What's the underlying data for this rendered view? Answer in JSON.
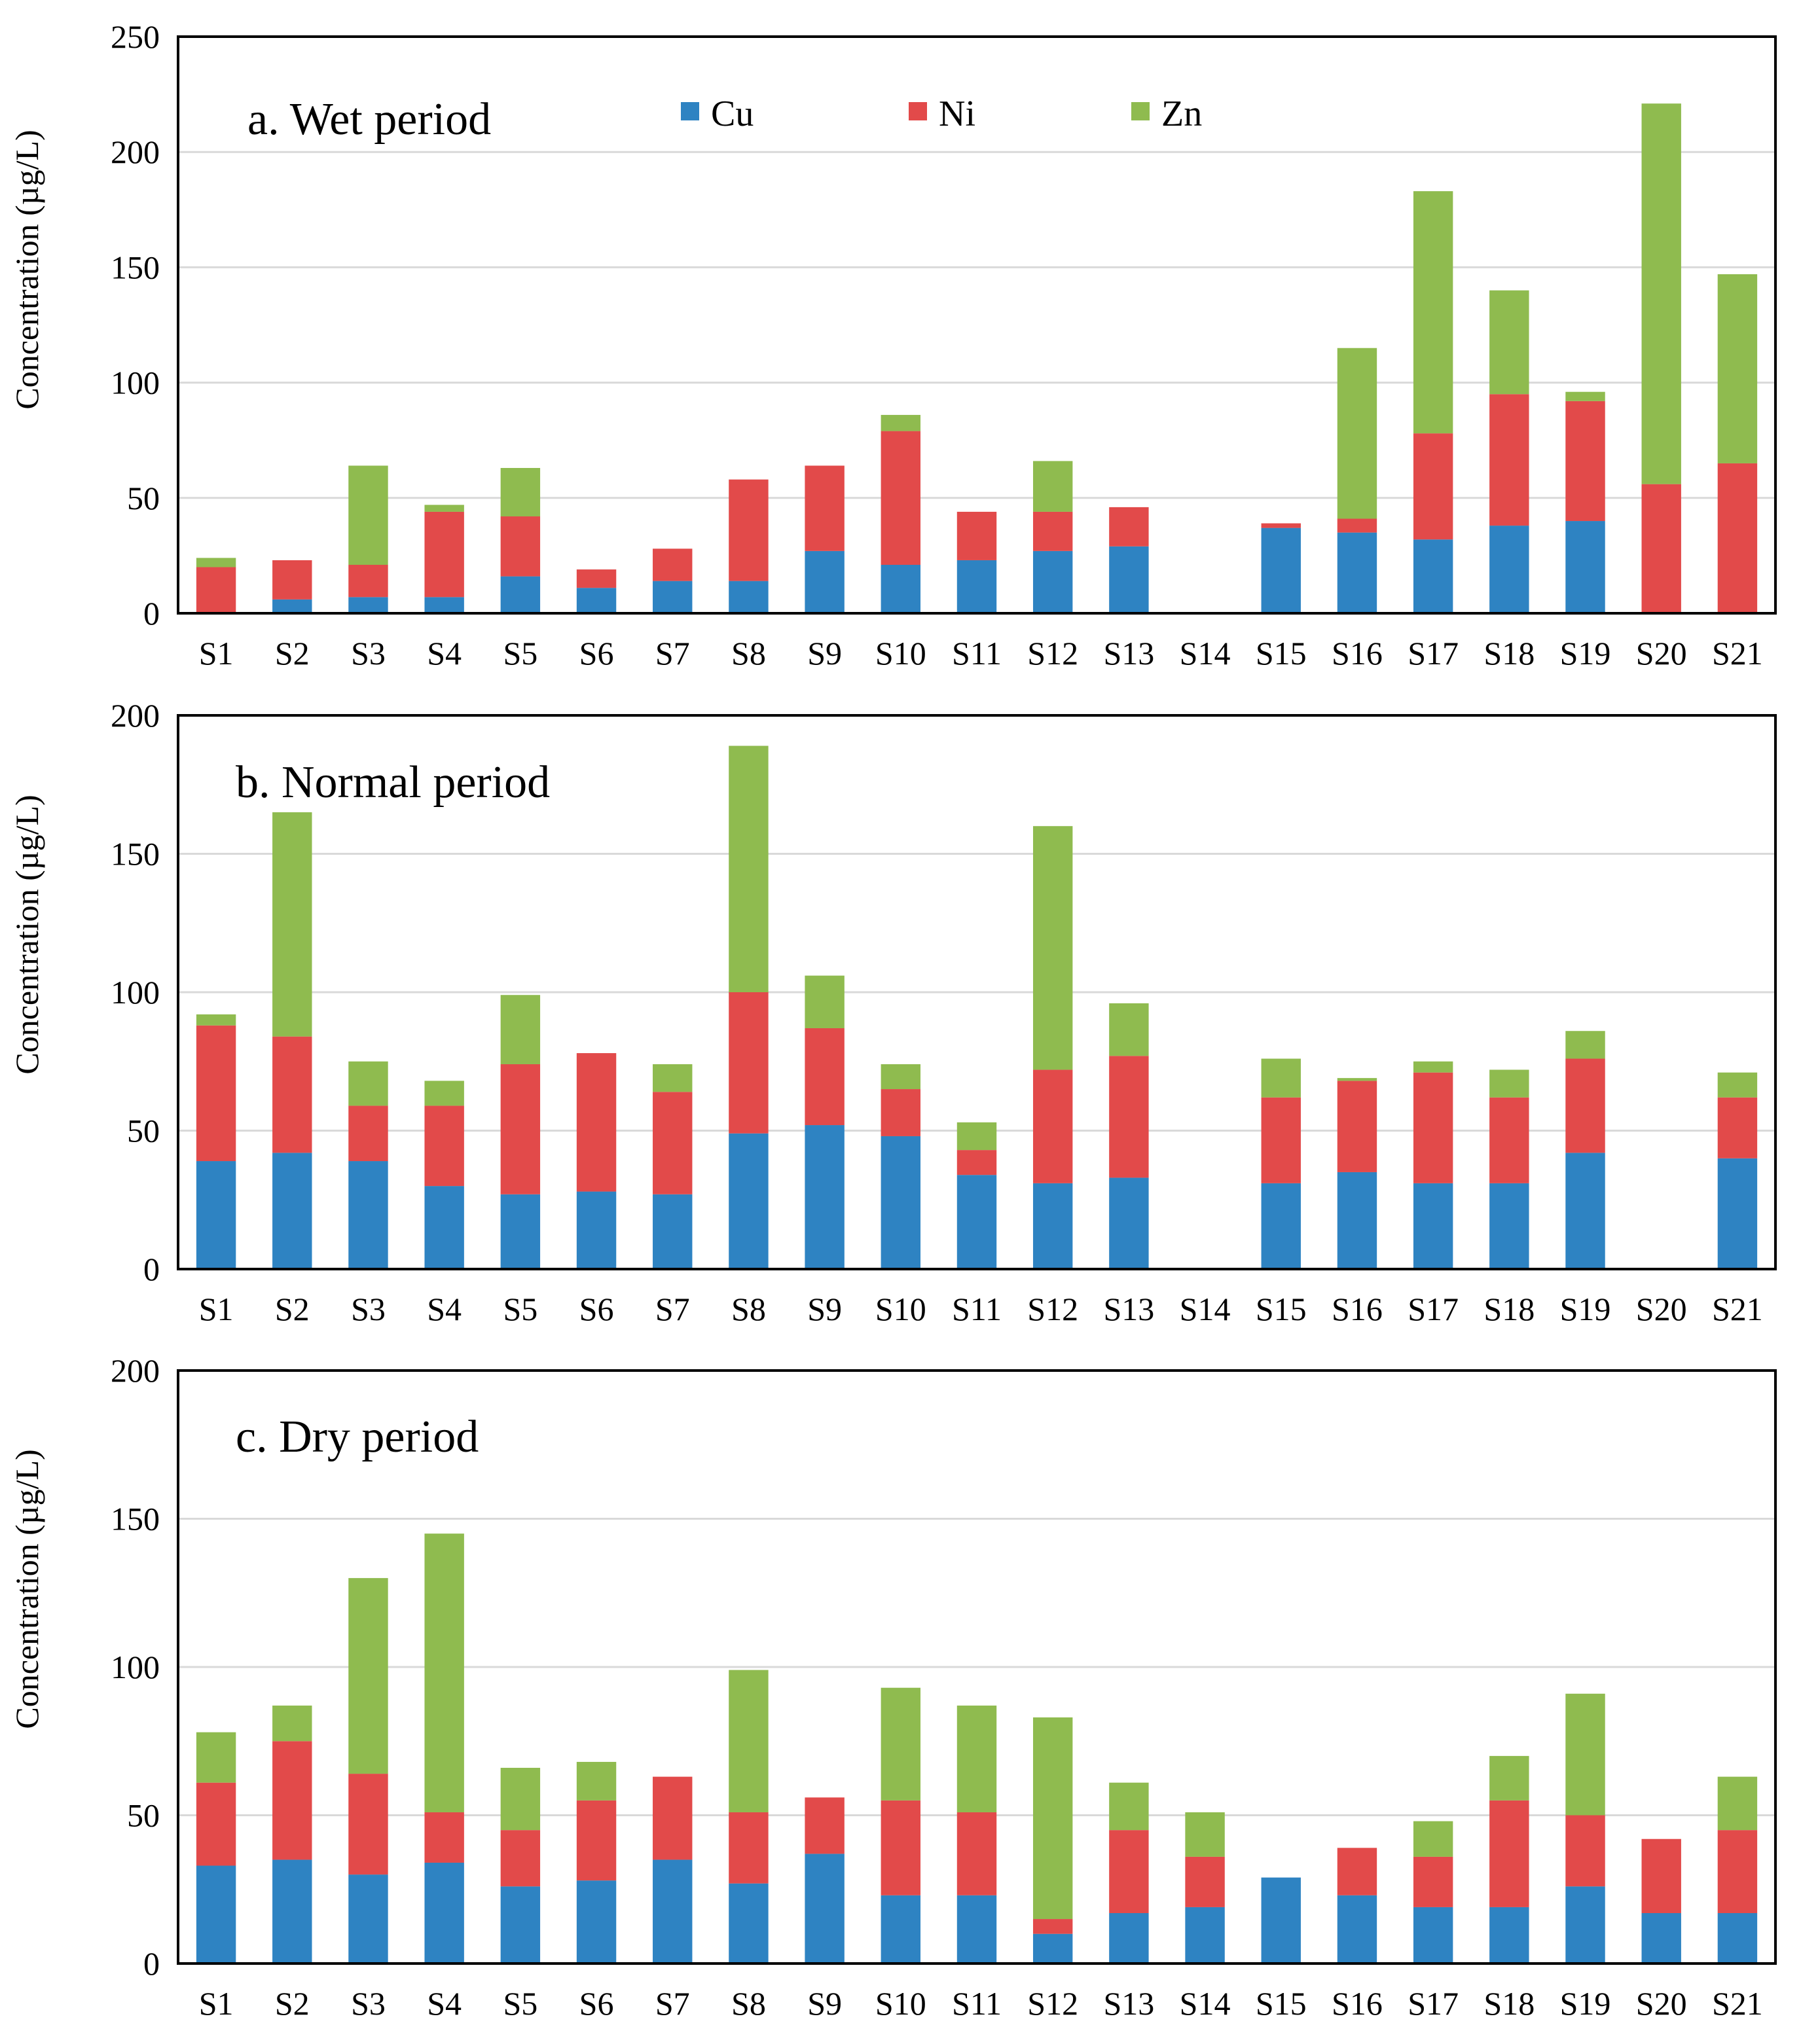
{
  "colors": {
    "Cu": "#2e83c2",
    "Ni": "#e24a4a",
    "Zn": "#8fbb4f"
  },
  "legend": [
    "Cu",
    "Ni",
    "Zn"
  ],
  "chart_data": [
    {
      "type": "bar",
      "stacked": true,
      "title": "a. Wet period",
      "ylabel": "Concentration (µg/L)",
      "ylim": [
        0,
        250
      ],
      "yticks": [
        0,
        50,
        100,
        150,
        200,
        250
      ],
      "categories": [
        "S1",
        "S2",
        "S3",
        "S4",
        "S5",
        "S6",
        "S7",
        "S8",
        "S9",
        "S10",
        "S11",
        "S12",
        "S13",
        "S14",
        "S15",
        "S16",
        "S17",
        "S18",
        "S19",
        "S20",
        "S21"
      ],
      "series": [
        {
          "name": "Cu",
          "values": [
            0,
            6,
            7,
            7,
            16,
            11,
            14,
            14,
            27,
            21,
            23,
            27,
            29,
            0,
            37,
            35,
            32,
            38,
            40,
            0,
            0
          ]
        },
        {
          "name": "Ni",
          "values": [
            20,
            17,
            14,
            37,
            26,
            8,
            14,
            44,
            37,
            58,
            21,
            17,
            17,
            0,
            2,
            6,
            46,
            57,
            52,
            56,
            65
          ]
        },
        {
          "name": "Zn",
          "values": [
            4,
            0,
            43,
            3,
            21,
            0,
            0,
            0,
            0,
            7,
            0,
            22,
            0,
            0,
            0,
            74,
            105,
            45,
            4,
            165,
            82
          ]
        }
      ]
    },
    {
      "type": "bar",
      "stacked": true,
      "title": "b. Normal period",
      "ylabel": "Concentration (µg/L)",
      "ylim": [
        0,
        200
      ],
      "yticks": [
        0,
        50,
        100,
        150,
        200
      ],
      "categories": [
        "S1",
        "S2",
        "S3",
        "S4",
        "S5",
        "S6",
        "S7",
        "S8",
        "S9",
        "S10",
        "S11",
        "S12",
        "S13",
        "S14",
        "S15",
        "S16",
        "S17",
        "S18",
        "S19",
        "S20",
        "S21"
      ],
      "series": [
        {
          "name": "Cu",
          "values": [
            39,
            42,
            39,
            30,
            27,
            28,
            27,
            49,
            52,
            48,
            34,
            31,
            33,
            0,
            31,
            35,
            31,
            31,
            42,
            0,
            40
          ]
        },
        {
          "name": "Ni",
          "values": [
            49,
            42,
            20,
            29,
            47,
            50,
            37,
            51,
            35,
            17,
            9,
            41,
            44,
            0,
            31,
            33,
            40,
            31,
            34,
            0,
            22
          ]
        },
        {
          "name": "Zn",
          "values": [
            4,
            81,
            16,
            9,
            25,
            0,
            10,
            89,
            19,
            9,
            10,
            88,
            19,
            0,
            14,
            1,
            4,
            10,
            10,
            0,
            9
          ]
        }
      ]
    },
    {
      "type": "bar",
      "stacked": true,
      "title": "c. Dry period",
      "ylabel": "Concentration (µg/L)",
      "ylim": [
        0,
        200
      ],
      "yticks": [
        0,
        50,
        100,
        150,
        200
      ],
      "categories": [
        "S1",
        "S2",
        "S3",
        "S4",
        "S5",
        "S6",
        "S7",
        "S8",
        "S9",
        "S10",
        "S11",
        "S12",
        "S13",
        "S14",
        "S15",
        "S16",
        "S17",
        "S18",
        "S19",
        "S20",
        "S21"
      ],
      "series": [
        {
          "name": "Cu",
          "values": [
            33,
            35,
            30,
            34,
            26,
            28,
            35,
            27,
            37,
            23,
            23,
            10,
            17,
            19,
            29,
            23,
            19,
            19,
            26,
            17,
            17
          ]
        },
        {
          "name": "Ni",
          "values": [
            28,
            40,
            34,
            17,
            19,
            27,
            28,
            24,
            19,
            32,
            28,
            5,
            28,
            17,
            0,
            16,
            17,
            36,
            24,
            25,
            28
          ]
        },
        {
          "name": "Zn",
          "values": [
            17,
            12,
            66,
            94,
            21,
            13,
            0,
            48,
            0,
            38,
            36,
            68,
            16,
            15,
            0,
            0,
            12,
            15,
            41,
            0,
            18
          ]
        }
      ]
    }
  ]
}
